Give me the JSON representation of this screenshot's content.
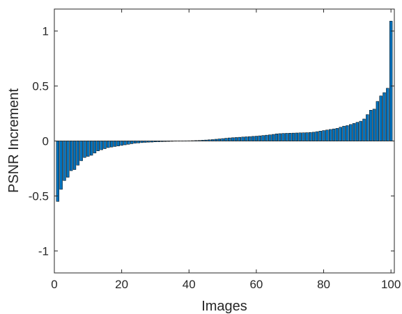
{
  "chart_data": {
    "type": "bar",
    "title": "",
    "xlabel": "Images",
    "ylabel": "PSNR Increment",
    "xlim": [
      0,
      101
    ],
    "ylim": [
      -1.2,
      1.2
    ],
    "xticks": [
      0,
      20,
      40,
      60,
      80,
      100
    ],
    "yticks": [
      -1,
      -0.5,
      0,
      0.5,
      1
    ],
    "xtick_labels": [
      "0",
      "20",
      "40",
      "60",
      "80",
      "100"
    ],
    "ytick_labels": [
      "-1",
      "-0.5",
      "0",
      "0.5",
      "1"
    ],
    "grid": false,
    "bar_color": "#0072BD",
    "edge_color": "#000000",
    "x": [
      1,
      2,
      3,
      4,
      5,
      6,
      7,
      8,
      9,
      10,
      11,
      12,
      13,
      14,
      15,
      16,
      17,
      18,
      19,
      20,
      21,
      22,
      23,
      24,
      25,
      26,
      27,
      28,
      29,
      30,
      31,
      32,
      33,
      34,
      35,
      36,
      37,
      38,
      39,
      40,
      41,
      42,
      43,
      44,
      45,
      46,
      47,
      48,
      49,
      50,
      51,
      52,
      53,
      54,
      55,
      56,
      57,
      58,
      59,
      60,
      61,
      62,
      63,
      64,
      65,
      66,
      67,
      68,
      69,
      70,
      71,
      72,
      73,
      74,
      75,
      76,
      77,
      78,
      79,
      80,
      81,
      82,
      83,
      84,
      85,
      86,
      87,
      88,
      89,
      90,
      91,
      92,
      93,
      94,
      95,
      96,
      97,
      98,
      99,
      100
    ],
    "values": [
      -0.55,
      -0.44,
      -0.36,
      -0.33,
      -0.27,
      -0.26,
      -0.22,
      -0.18,
      -0.15,
      -0.14,
      -0.13,
      -0.11,
      -0.09,
      -0.08,
      -0.07,
      -0.06,
      -0.055,
      -0.05,
      -0.045,
      -0.04,
      -0.035,
      -0.03,
      -0.025,
      -0.02,
      -0.018,
      -0.015,
      -0.013,
      -0.011,
      -0.01,
      -0.008,
      -0.007,
      -0.006,
      -0.005,
      -0.004,
      -0.003,
      -0.002,
      -0.001,
      0.0,
      0.001,
      0.002,
      0.003,
      0.004,
      0.005,
      0.007,
      0.009,
      0.011,
      0.013,
      0.016,
      0.019,
      0.022,
      0.025,
      0.028,
      0.03,
      0.032,
      0.034,
      0.036,
      0.038,
      0.04,
      0.042,
      0.044,
      0.047,
      0.05,
      0.053,
      0.056,
      0.06,
      0.065,
      0.067,
      0.069,
      0.07,
      0.071,
      0.072,
      0.073,
      0.074,
      0.075,
      0.076,
      0.078,
      0.08,
      0.085,
      0.09,
      0.095,
      0.1,
      0.105,
      0.11,
      0.115,
      0.125,
      0.135,
      0.14,
      0.15,
      0.16,
      0.17,
      0.18,
      0.2,
      0.24,
      0.28,
      0.29,
      0.36,
      0.41,
      0.44,
      0.48,
      1.09
    ]
  }
}
